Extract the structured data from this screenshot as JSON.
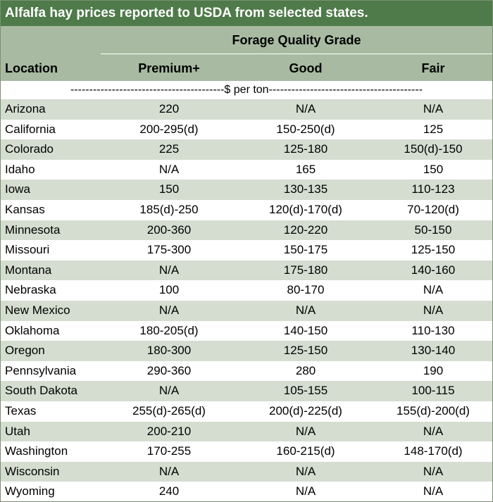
{
  "title": "Alfalfa hay prices reported to USDA from selected states.",
  "group_header": "Forage Quality Grade",
  "columns": {
    "location": "Location",
    "premium": "Premium+",
    "good": "Good",
    "fair": "Fair"
  },
  "units_row": "-----------------------------------------$ per ton-----------------------------------------",
  "colors": {
    "title_bg": "#4f7a4a",
    "header_bg": "#a8bba2",
    "stripe_bg": "#d4ddd0"
  },
  "rows": [
    {
      "location": "Arizona",
      "premium": "220",
      "good": "N/A",
      "fair": "N/A"
    },
    {
      "location": "California",
      "premium": "200-295(d)",
      "good": "150-250(d)",
      "fair": "125"
    },
    {
      "location": "Colorado",
      "premium": "225",
      "good": "125-180",
      "fair": "150(d)-150"
    },
    {
      "location": "Idaho",
      "premium": "N/A",
      "good": "165",
      "fair": "150"
    },
    {
      "location": "Iowa",
      "premium": "150",
      "good": "130-135",
      "fair": "110-123"
    },
    {
      "location": "Kansas",
      "premium": "185(d)-250",
      "good": "120(d)-170(d)",
      "fair": "70-120(d)"
    },
    {
      "location": "Minnesota",
      "premium": "200-360",
      "good": "120-220",
      "fair": "50-150"
    },
    {
      "location": "Missouri",
      "premium": "175-300",
      "good": "150-175",
      "fair": "125-150"
    },
    {
      "location": "Montana",
      "premium": "N/A",
      "good": "175-180",
      "fair": "140-160"
    },
    {
      "location": "Nebraska",
      "premium": "100",
      "good": "80-170",
      "fair": "N/A"
    },
    {
      "location": "New Mexico",
      "premium": "N/A",
      "good": "N/A",
      "fair": "N/A"
    },
    {
      "location": "Oklahoma",
      "premium": "180-205(d)",
      "good": "140-150",
      "fair": "110-130"
    },
    {
      "location": "Oregon",
      "premium": "180-300",
      "good": "125-150",
      "fair": "130-140"
    },
    {
      "location": "Pennsylvania",
      "premium": "290-360",
      "good": "280",
      "fair": "190"
    },
    {
      "location": "South Dakota",
      "premium": "N/A",
      "good": "105-155",
      "fair": "100-115"
    },
    {
      "location": "Texas",
      "premium": "255(d)-265(d)",
      "good": "200(d)-225(d)",
      "fair": "155(d)-200(d)"
    },
    {
      "location": "Utah",
      "premium": "200-210",
      "good": "N/A",
      "fair": "N/A"
    },
    {
      "location": "Washington",
      "premium": "170-255",
      "good": "160-215(d)",
      "fair": "148-170(d)"
    },
    {
      "location": "Wisconsin",
      "premium": "N/A",
      "good": "N/A",
      "fair": "N/A"
    },
    {
      "location": "Wyoming",
      "premium": "240",
      "good": "N/A",
      "fair": "N/A"
    }
  ]
}
